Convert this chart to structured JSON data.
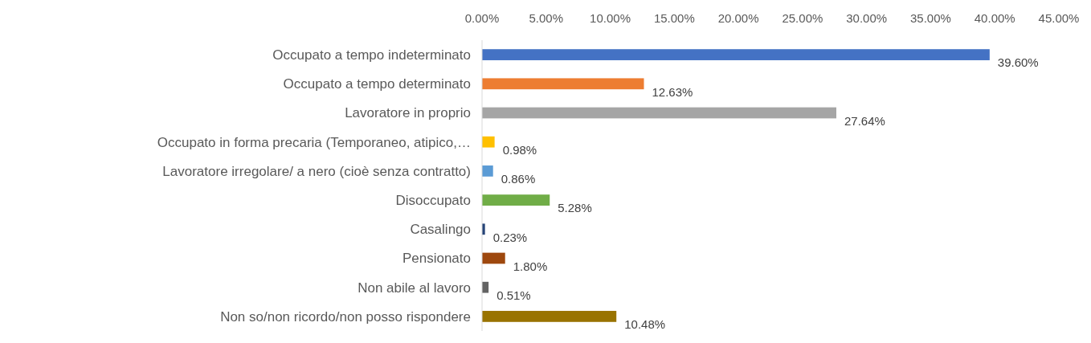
{
  "chart_data": {
    "type": "bar",
    "orientation": "horizontal",
    "categories": [
      "Occupato a tempo indeterminato",
      "Occupato a tempo determinato",
      "Lavoratore in proprio",
      "Occupato in forma precaria (Temporaneo, atipico,…",
      "Lavoratore irregolare/ a nero (cioè senza contratto)",
      "Disoccupato",
      "Casalingo",
      "Pensionato",
      "Non abile al lavoro",
      "Non so/non ricordo/non posso rispondere"
    ],
    "values": [
      39.6,
      12.63,
      27.64,
      0.98,
      0.86,
      5.28,
      0.23,
      1.8,
      0.51,
      10.48
    ],
    "value_labels": [
      "39.60%",
      "12.63%",
      "27.64%",
      "0.98%",
      "0.86%",
      "5.28%",
      "0.23%",
      "1.80%",
      "0.51%",
      "10.48%"
    ],
    "colors": [
      "#4472c4",
      "#ed7d31",
      "#a5a5a5",
      "#ffc000",
      "#5b9bd5",
      "#70ad47",
      "#264478",
      "#9e480e",
      "#636363",
      "#997300"
    ],
    "xlim": [
      0,
      45
    ],
    "xticks": [
      {
        "value": 0,
        "label": "0.00%"
      },
      {
        "value": 5,
        "label": "5.00%"
      },
      {
        "value": 10,
        "label": "10.00%"
      },
      {
        "value": 15,
        "label": "15.00%"
      },
      {
        "value": 20,
        "label": "20.00%"
      },
      {
        "value": 25,
        "label": "25.00%"
      },
      {
        "value": 30,
        "label": "30.00%"
      },
      {
        "value": 35,
        "label": "35.00%"
      },
      {
        "value": 40,
        "label": "40.00%"
      },
      {
        "value": 45,
        "label": "45.00%"
      }
    ],
    "grid": false
  }
}
